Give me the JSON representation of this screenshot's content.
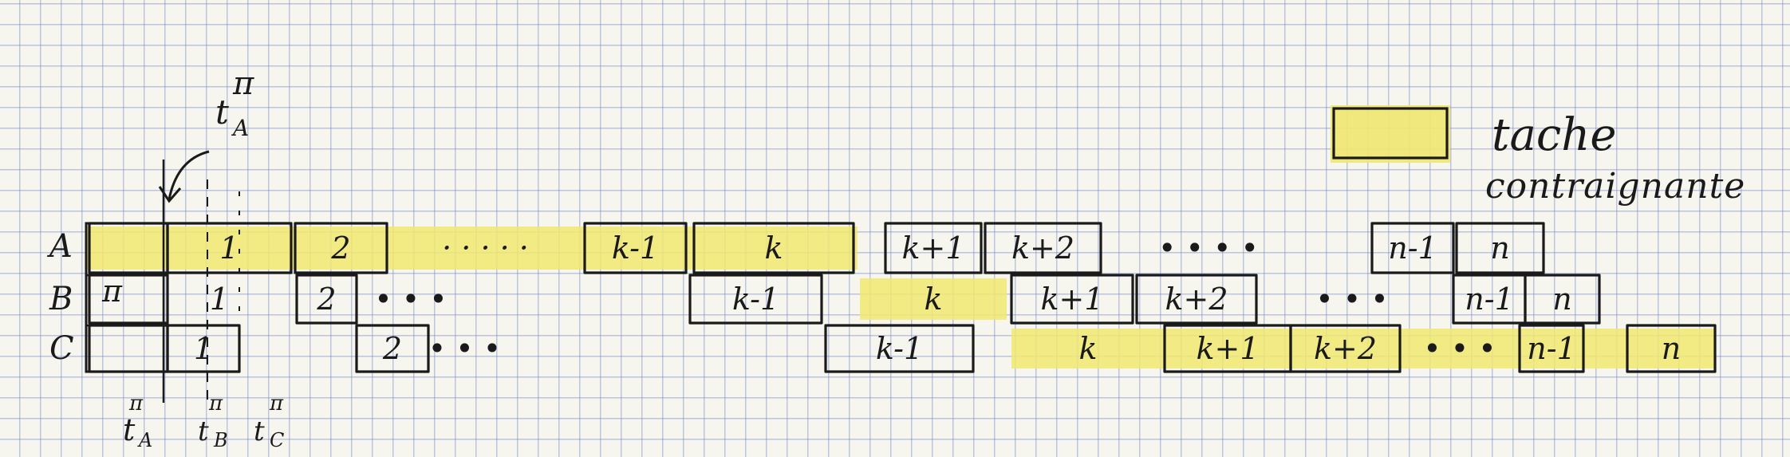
{
  "rows": [
    "A",
    "B",
    "C"
  ],
  "pi": "π",
  "legend": {
    "label_line1": "tache",
    "label_line2": "contraignante"
  },
  "colors": {
    "constraining": "#f1e770",
    "ink": "#1a1a1a",
    "grid": "#8793c8"
  },
  "times": {
    "top": {
      "base": "t",
      "sub": "A",
      "sup": "π"
    },
    "bottom": [
      {
        "base": "t",
        "sub": "A",
        "sup": "π"
      },
      {
        "base": "t",
        "sub": "B",
        "sup": "π"
      },
      {
        "base": "t",
        "sub": "C",
        "sup": "π"
      }
    ]
  },
  "tasks": {
    "A": [
      {
        "label": "",
        "highlight": true
      },
      {
        "label": "1",
        "highlight": true
      },
      {
        "label": "2",
        "highlight": true
      },
      {
        "label": "· · · · ·",
        "highlight": true
      },
      {
        "label": "k-1",
        "highlight": true
      },
      {
        "label": "k",
        "highlight": true
      },
      {
        "label": "k+1",
        "highlight": false
      },
      {
        "label": "k+2",
        "highlight": false
      },
      {
        "label": "• • • •",
        "highlight": false
      },
      {
        "label": "n-1",
        "highlight": false
      },
      {
        "label": "n",
        "highlight": false
      }
    ],
    "B": [
      {
        "label": "",
        "highlight": false
      },
      {
        "label": "1",
        "highlight": false
      },
      {
        "label": "2",
        "highlight": false
      },
      {
        "label": "• • •",
        "highlight": false
      },
      {
        "label": "k-1",
        "highlight": false
      },
      {
        "label": "k",
        "highlight": true
      },
      {
        "label": "k+1",
        "highlight": false
      },
      {
        "label": "k+2",
        "highlight": false
      },
      {
        "label": "• • •",
        "highlight": false
      },
      {
        "label": "n-1",
        "highlight": false
      },
      {
        "label": "n",
        "highlight": false
      }
    ],
    "C": [
      {
        "label": "",
        "highlight": false
      },
      {
        "label": "1",
        "highlight": false
      },
      {
        "label": "2",
        "highlight": false
      },
      {
        "label": "• • •",
        "highlight": false
      },
      {
        "label": "k-1",
        "highlight": false
      },
      {
        "label": "k",
        "highlight": true
      },
      {
        "label": "k+1",
        "highlight": true
      },
      {
        "label": "k+2",
        "highlight": true
      },
      {
        "label": "• • •",
        "highlight": true
      },
      {
        "label": "n-1",
        "highlight": true
      },
      {
        "label": "n",
        "highlight": true
      }
    ]
  }
}
